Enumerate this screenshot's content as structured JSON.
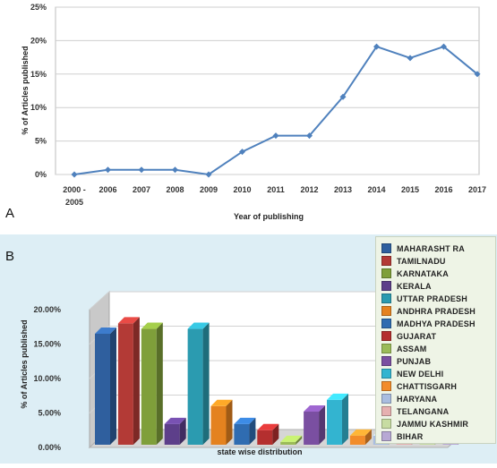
{
  "chart_data": [
    {
      "type": "line",
      "panel_label": "A",
      "title": "",
      "xlabel": "Year of publishing",
      "ylabel": "% of Articles published",
      "categories": [
        "2000 -\n2005",
        "2006",
        "2007",
        "2008",
        "2009",
        "2010",
        "2011",
        "2012",
        "2013",
        "2014",
        "2015",
        "2016",
        "2017"
      ],
      "values": [
        0,
        0.7,
        0.7,
        0.7,
        0,
        3.4,
        5.8,
        5.8,
        11.6,
        19.1,
        17.4,
        19.1,
        15
      ],
      "ylim": [
        0,
        25
      ],
      "yticks": [
        "0%",
        "5%",
        "10%",
        "15%",
        "20%",
        "25%"
      ],
      "grid": true,
      "color": "#4f81bd"
    },
    {
      "type": "bar",
      "panel_label": "B",
      "title": "",
      "xlabel": "state wise distribution",
      "ylabel": "% of Articles published",
      "categories": [
        "MAHARASHT RA",
        "TAMILNADU",
        "KARNATAKA",
        "KERALA",
        "UTTAR PRADESH",
        "ANDHRA PRADESH",
        "MADHYA PRADESH",
        "GUJARAT",
        "ASSAM",
        "PUNJAB",
        "NEW DELHI",
        "CHATTISGARH",
        "HARYANA",
        "TELANGANA",
        "JAMMU KASHMIR",
        "BIHAR"
      ],
      "values": [
        16.5,
        18,
        17.2,
        3.4,
        17.2,
        6,
        3.4,
        2.5,
        0.8,
        5.2,
        6.9,
        1.7,
        1.7,
        0.8,
        0.8,
        0.8
      ],
      "colors": [
        "#2f5f9e",
        "#b33a36",
        "#7f9f3a",
        "#5d3f8a",
        "#2b9bb0",
        "#e4821f",
        "#2f6cb1",
        "#b42f2f",
        "#9bbb59",
        "#7a4fa1",
        "#33b4d0",
        "#f28c2a",
        "#a9bde0",
        "#e6b0b0",
        "#c7dca2",
        "#b7a8d4"
      ],
      "ylim": [
        0,
        20
      ],
      "yticks": [
        "0.00%",
        "5.00%",
        "10.00%",
        "15.00%",
        "20.00%"
      ],
      "grid": true,
      "legend_position": "right"
    }
  ]
}
